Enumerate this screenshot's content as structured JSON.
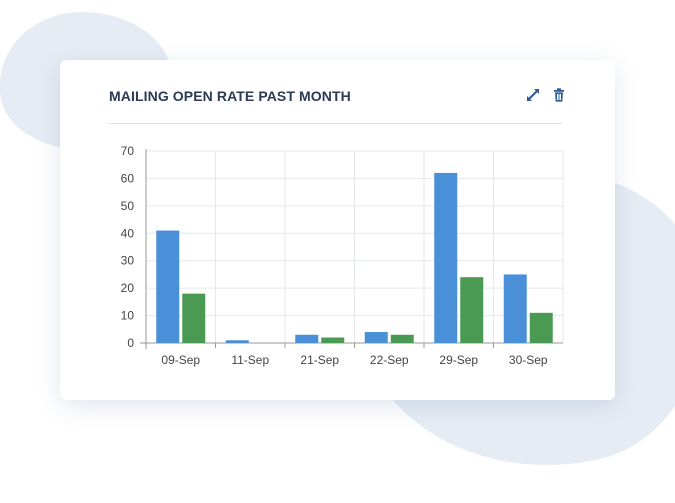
{
  "widget": {
    "title": "MAILING OPEN RATE PAST MONTH",
    "actions": [
      {
        "icon": "expand-icon"
      },
      {
        "icon": "trash-icon"
      }
    ]
  },
  "colors": {
    "series_blue": "#4a90d9",
    "series_green": "#4a9a54",
    "title": "#2b3a55",
    "icon": "#2e5c99"
  },
  "chart_data": {
    "type": "bar",
    "title": "",
    "xlabel": "",
    "ylabel": "",
    "ylim": [
      0,
      70
    ],
    "yticks": [
      0,
      10,
      20,
      30,
      40,
      50,
      60,
      70
    ],
    "grid": true,
    "categories": [
      "09-Sep",
      "11-Sep",
      "21-Sep",
      "22-Sep",
      "29-Sep",
      "30-Sep"
    ],
    "series": [
      {
        "color": "#4a90d9",
        "values": [
          41,
          1,
          3,
          4,
          62,
          25
        ]
      },
      {
        "color": "#4a9a54",
        "values": [
          18,
          0,
          2,
          3,
          24,
          11
        ]
      }
    ]
  }
}
